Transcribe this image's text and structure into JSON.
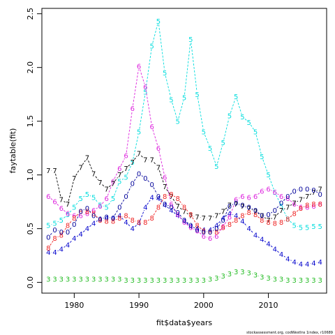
{
  "chart_data": {
    "type": "line",
    "xlabel": "fit$data$years",
    "ylabel": "faytable(fit)",
    "xlim": [
      1975,
      2019
    ],
    "ylim": [
      -0.1,
      2.55
    ],
    "x_ticks": [
      1980,
      1990,
      2000,
      2010
    ],
    "y_ticks": [
      0.0,
      0.5,
      1.0,
      1.5,
      2.0,
      2.5
    ],
    "y_tick_labels": [
      "0.0",
      "0.5",
      "1.0",
      "1.5",
      "2.0",
      "2.5"
    ],
    "grid": false,
    "legend": "none",
    "footnote": "stockassessment.org, codWestIns  1index, r10689",
    "years": [
      1976,
      1977,
      1978,
      1979,
      1980,
      1981,
      1982,
      1983,
      1984,
      1985,
      1986,
      1987,
      1988,
      1989,
      1990,
      1991,
      1992,
      1993,
      1994,
      1995,
      1996,
      1997,
      1998,
      1999,
      2000,
      2001,
      2002,
      2003,
      2004,
      2005,
      2006,
      2007,
      2008,
      2009,
      2010,
      2011,
      2012,
      2013,
      2014,
      2015,
      2016,
      2017,
      2018
    ],
    "series": [
      {
        "label": "3",
        "color": "#22bb22",
        "values": [
          0.03,
          0.03,
          0.03,
          0.03,
          0.03,
          0.03,
          0.03,
          0.03,
          0.03,
          0.03,
          0.03,
          0.03,
          0.02,
          0.02,
          0.02,
          0.02,
          0.02,
          0.02,
          0.02,
          0.02,
          0.02,
          0.02,
          0.02,
          0.02,
          0.02,
          0.03,
          0.04,
          0.06,
          0.08,
          0.1,
          0.1,
          0.09,
          0.07,
          0.05,
          0.04,
          0.03,
          0.03,
          0.02,
          0.02,
          0.02,
          0.02,
          0.02,
          0.02
        ]
      },
      {
        "label": "4",
        "color": "#0000cc",
        "values": [
          0.28,
          0.28,
          0.31,
          0.35,
          0.41,
          0.45,
          0.5,
          0.55,
          0.59,
          0.6,
          0.6,
          0.62,
          0.56,
          0.5,
          0.55,
          0.7,
          0.79,
          0.78,
          0.72,
          0.67,
          0.62,
          0.57,
          0.52,
          0.5,
          0.49,
          0.49,
          0.53,
          0.6,
          0.64,
          0.62,
          0.57,
          0.5,
          0.44,
          0.4,
          0.36,
          0.31,
          0.26,
          0.22,
          0.19,
          0.17,
          0.17,
          0.18,
          0.19
        ]
      },
      {
        "label": "5",
        "color": "#00dddd",
        "values": [
          0.53,
          0.55,
          0.58,
          0.63,
          0.7,
          0.78,
          0.82,
          0.79,
          0.72,
          0.7,
          0.78,
          0.94,
          0.98,
          1.12,
          1.4,
          1.77,
          2.2,
          2.43,
          1.95,
          1.7,
          1.5,
          1.72,
          2.26,
          1.75,
          1.4,
          1.25,
          1.08,
          1.3,
          1.55,
          1.73,
          1.54,
          1.49,
          1.4,
          1.17,
          1.0,
          0.84,
          0.71,
          0.59,
          0.53,
          0.51,
          0.51,
          0.52,
          0.52
        ]
      },
      {
        "label": "6",
        "color": "#dd22dd",
        "values": [
          0.8,
          0.75,
          0.69,
          0.64,
          0.62,
          0.62,
          0.64,
          0.67,
          0.71,
          0.78,
          0.94,
          1.06,
          1.18,
          1.62,
          2.01,
          1.82,
          1.45,
          1.25,
          0.98,
          0.73,
          0.63,
          0.56,
          0.51,
          0.48,
          0.43,
          0.41,
          0.43,
          0.52,
          0.61,
          0.77,
          0.8,
          0.79,
          0.8,
          0.85,
          0.87,
          0.84,
          0.8,
          0.78,
          0.73,
          0.7,
          0.7,
          0.71,
          0.73
        ]
      },
      {
        "label": "7",
        "color": "#000000",
        "values": [
          1.04,
          1.04,
          0.77,
          0.73,
          0.97,
          1.07,
          1.16,
          1.01,
          0.93,
          0.87,
          0.92,
          1.0,
          1.06,
          1.12,
          1.2,
          1.14,
          1.14,
          1.07,
          0.89,
          0.8,
          0.71,
          0.66,
          0.62,
          0.61,
          0.6,
          0.6,
          0.62,
          0.66,
          0.72,
          0.73,
          0.71,
          0.69,
          0.66,
          0.62,
          0.58,
          0.61,
          0.67,
          0.7,
          0.74,
          0.77,
          0.8,
          0.84,
          0.87
        ]
      },
      {
        "label": "8",
        "color": "#ee2222",
        "values": [
          0.32,
          0.41,
          0.44,
          0.53,
          0.6,
          0.66,
          0.66,
          0.64,
          0.58,
          0.57,
          0.57,
          0.6,
          0.62,
          0.58,
          0.56,
          0.56,
          0.6,
          0.7,
          0.8,
          0.82,
          0.78,
          0.7,
          0.63,
          0.53,
          0.48,
          0.47,
          0.47,
          0.51,
          0.54,
          0.58,
          0.62,
          0.65,
          0.63,
          0.58,
          0.56,
          0.55,
          0.56,
          0.59,
          0.64,
          0.69,
          0.72,
          0.73,
          0.73
        ]
      },
      {
        "label": "0",
        "color": "#000099",
        "values": [
          0.42,
          0.49,
          0.47,
          0.47,
          0.54,
          0.66,
          0.69,
          0.62,
          0.59,
          0.61,
          0.6,
          0.7,
          0.8,
          0.92,
          1.01,
          0.97,
          0.91,
          0.8,
          0.73,
          0.7,
          0.65,
          0.58,
          0.53,
          0.49,
          0.47,
          0.47,
          0.5,
          0.58,
          0.71,
          0.74,
          0.72,
          0.7,
          0.67,
          0.62,
          0.63,
          0.67,
          0.74,
          0.8,
          0.85,
          0.87,
          0.87,
          0.86,
          0.82
        ]
      }
    ]
  }
}
